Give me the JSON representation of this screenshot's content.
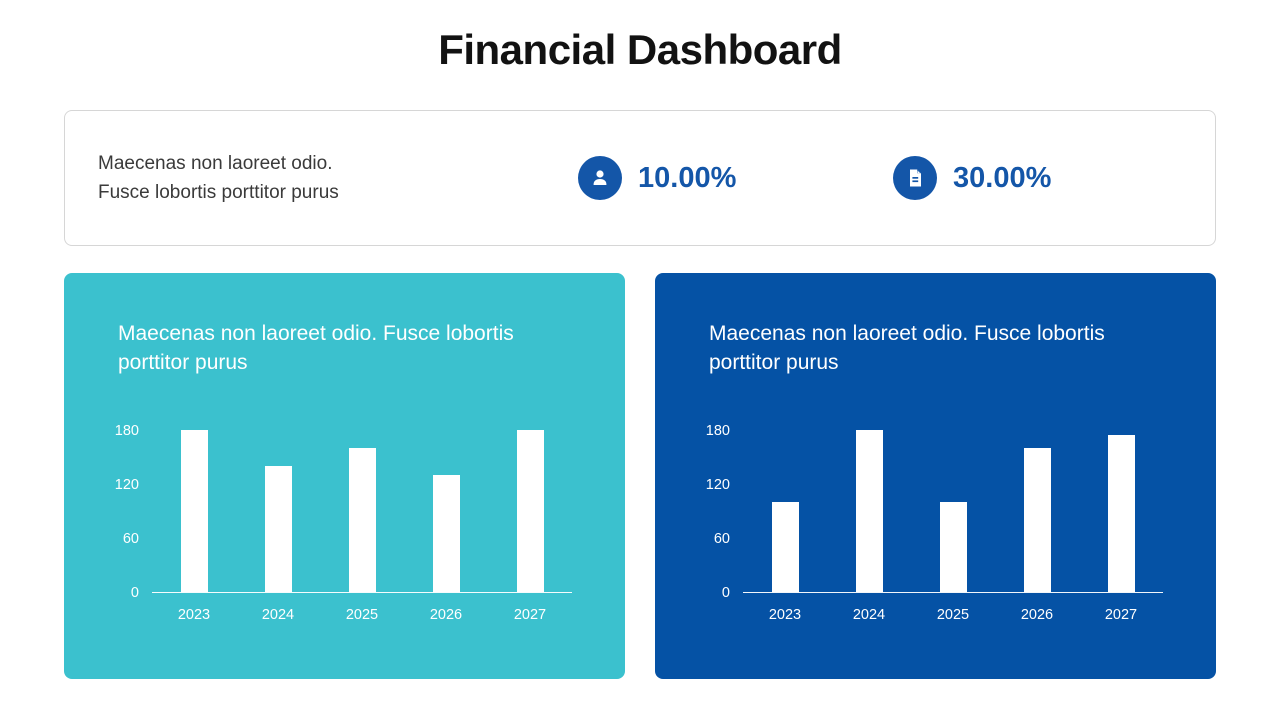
{
  "page": {
    "title": "Financial Dashboard"
  },
  "summary_card": {
    "description_line1": "Maecenas non laoreet odio.",
    "description_line2": "Fusce lobortis porttitor purus",
    "stats": [
      {
        "icon": "person-icon",
        "value": "10.00%"
      },
      {
        "icon": "document-icon",
        "value": "30.00%"
      }
    ]
  },
  "colors": {
    "accent_blue": "#1456a8",
    "teal_card": "#3bc1ce",
    "blue_card": "#0552a5",
    "bar_fill": "#ffffff",
    "axis_text": "#ffffff"
  },
  "chart_data": [
    {
      "type": "bar",
      "title": "Maecenas non laoreet odio. Fusce lobortis porttitor purus",
      "categories": [
        "2023",
        "2024",
        "2025",
        "2026",
        "2027"
      ],
      "values": [
        180,
        140,
        160,
        130,
        180
      ],
      "xlabel": "",
      "ylabel": "",
      "ylim": [
        0,
        180
      ],
      "yticks": [
        0,
        60,
        120,
        180
      ],
      "grid": false,
      "legend": false,
      "bar_color": "#ffffff",
      "background": "#3bc1ce"
    },
    {
      "type": "bar",
      "title": "Maecenas non laoreet odio. Fusce lobortis porttitor purus",
      "categories": [
        "2023",
        "2024",
        "2025",
        "2026",
        "2027"
      ],
      "values": [
        100,
        180,
        100,
        160,
        175
      ],
      "xlabel": "",
      "ylabel": "",
      "ylim": [
        0,
        180
      ],
      "yticks": [
        0,
        60,
        120,
        180
      ],
      "grid": false,
      "legend": false,
      "bar_color": "#ffffff",
      "background": "#0552a5"
    }
  ]
}
